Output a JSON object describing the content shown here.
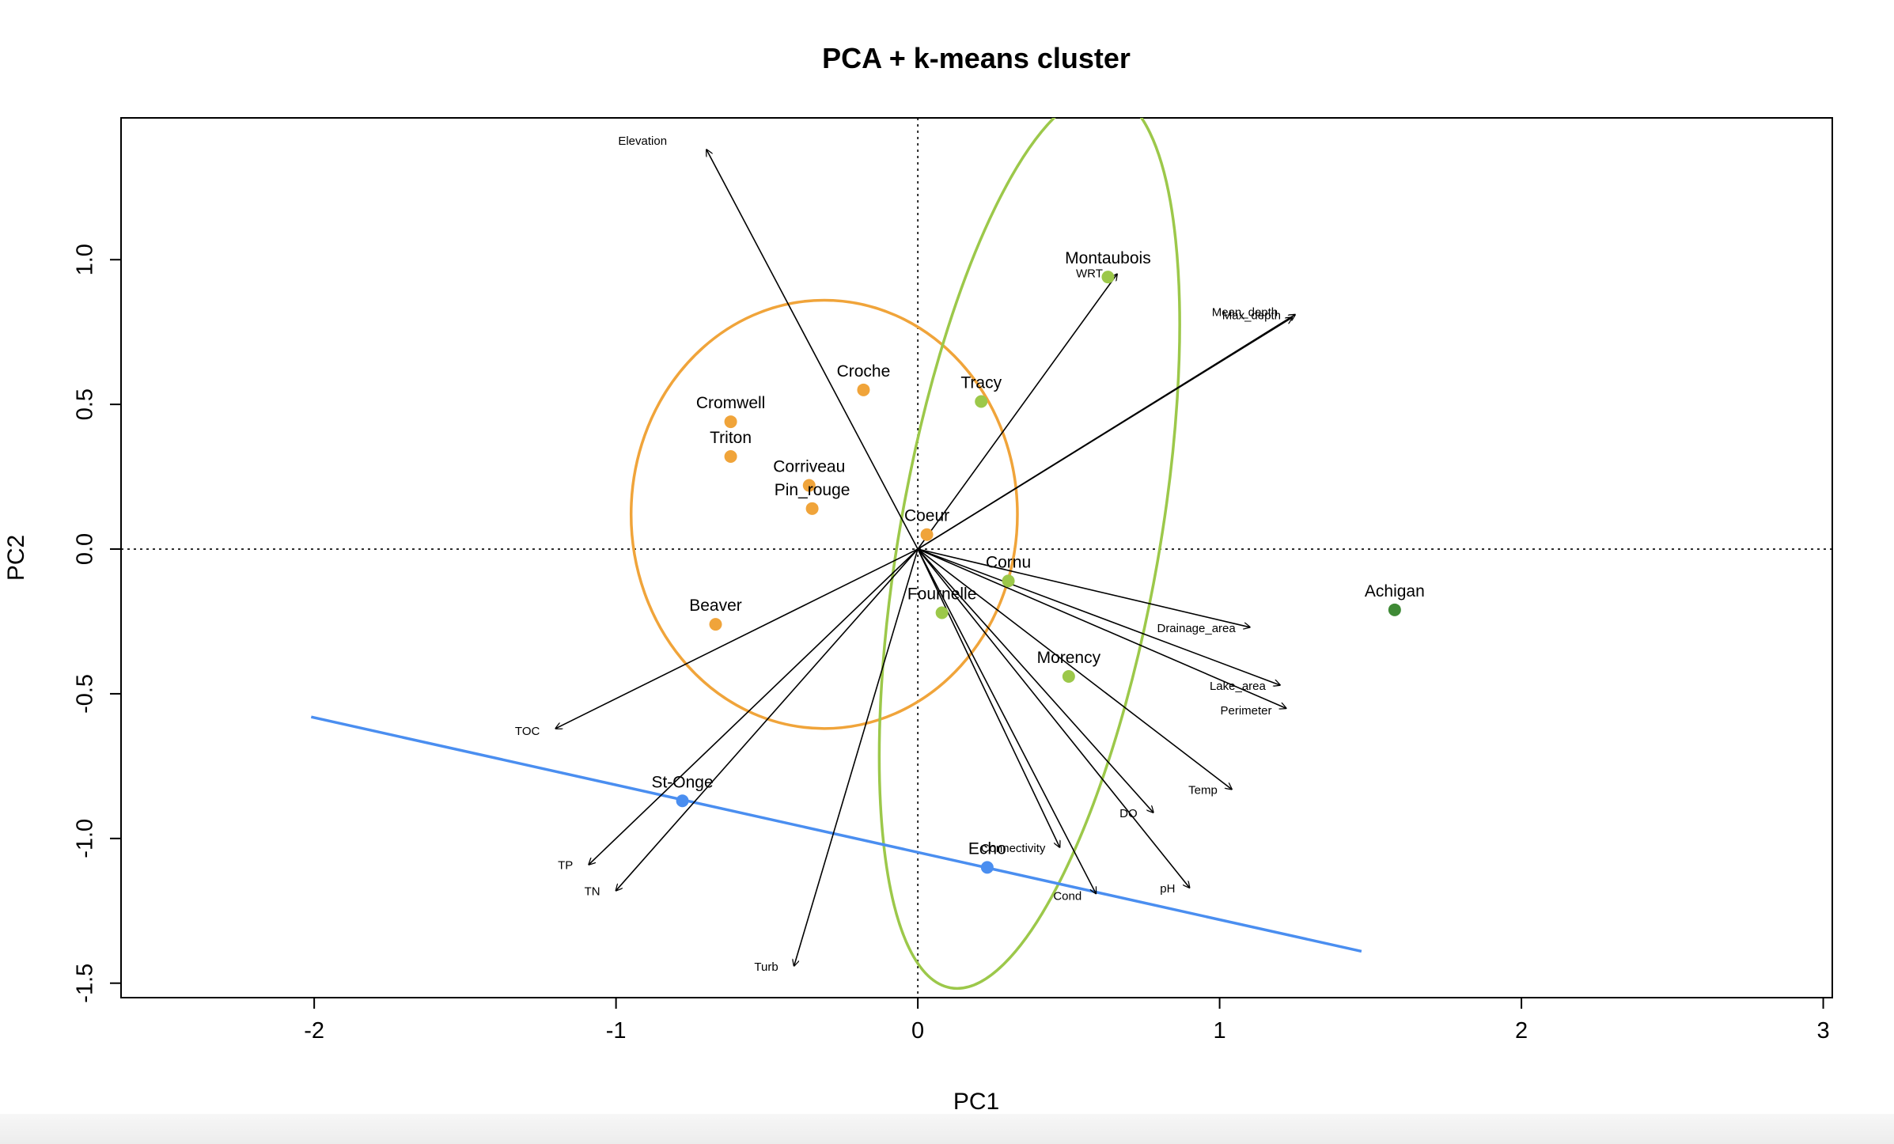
{
  "chart_data": {
    "type": "scatter",
    "title": "PCA + k-means cluster",
    "xlabel": "PC1",
    "ylabel": "PC2",
    "xlim": [
      -2.64,
      3.03
    ],
    "ylim": [
      -1.55,
      1.49
    ],
    "xticks": [
      "-2",
      "-1",
      "0",
      "1",
      "2",
      "3"
    ],
    "yticks": [
      "-1.5",
      "-1.0",
      "-0.5",
      "0.0",
      "0.5",
      "1.0"
    ],
    "colors": {
      "orange": "#f0a43a",
      "light_green": "#9cc84a",
      "dark_green": "#3f8a36",
      "blue": "#4a8ef0",
      "arrow": "#000000"
    },
    "sites": [
      {
        "name": "Montaubois",
        "x": 0.63,
        "y": 0.94,
        "color": "light_green"
      },
      {
        "name": "Croche",
        "x": -0.18,
        "y": 0.55,
        "color": "orange"
      },
      {
        "name": "Tracy",
        "x": 0.21,
        "y": 0.51,
        "color": "light_green"
      },
      {
        "name": "Cromwell",
        "x": -0.62,
        "y": 0.44,
        "color": "orange"
      },
      {
        "name": "Triton",
        "x": -0.62,
        "y": 0.32,
        "color": "orange"
      },
      {
        "name": "Corriveau",
        "x": -0.36,
        "y": 0.22,
        "color": "orange"
      },
      {
        "name": "Pin_rouge",
        "x": -0.35,
        "y": 0.14,
        "color": "orange"
      },
      {
        "name": "Coeur",
        "x": 0.03,
        "y": 0.05,
        "color": "orange"
      },
      {
        "name": "Cornu",
        "x": 0.3,
        "y": -0.11,
        "color": "light_green"
      },
      {
        "name": "Fournelle",
        "x": 0.08,
        "y": -0.22,
        "color": "light_green"
      },
      {
        "name": "Beaver",
        "x": -0.67,
        "y": -0.26,
        "color": "orange"
      },
      {
        "name": "Morency",
        "x": 0.5,
        "y": -0.44,
        "color": "light_green"
      },
      {
        "name": "Achigan",
        "x": 1.58,
        "y": -0.21,
        "color": "dark_green"
      },
      {
        "name": "St-Onge",
        "x": -0.78,
        "y": -0.87,
        "color": "blue"
      },
      {
        "name": "Echo",
        "x": 0.23,
        "y": -1.1,
        "color": "blue"
      }
    ],
    "variables": [
      {
        "name": "Elevation",
        "x": -0.7,
        "y": 1.38
      },
      {
        "name": "WRT",
        "x": 0.66,
        "y": 0.95
      },
      {
        "name": "Mean_depth",
        "x": 1.24,
        "y": 0.8
      },
      {
        "name": "Max_depth",
        "x": 1.25,
        "y": 0.81
      },
      {
        "name": "Drainage_area",
        "x": 1.1,
        "y": -0.27
      },
      {
        "name": "Lake_area",
        "x": 1.2,
        "y": -0.47
      },
      {
        "name": "Perimeter",
        "x": 1.22,
        "y": -0.55
      },
      {
        "name": "Temp",
        "x": 1.04,
        "y": -0.83
      },
      {
        "name": "DO",
        "x": 0.78,
        "y": -0.91
      },
      {
        "name": "Connectivity",
        "x": 0.47,
        "y": -1.03
      },
      {
        "name": "Cond",
        "x": 0.59,
        "y": -1.19
      },
      {
        "name": "pH",
        "x": 0.9,
        "y": -1.17
      },
      {
        "name": "TOC",
        "x": -1.2,
        "y": -0.62
      },
      {
        "name": "TP",
        "x": -1.09,
        "y": -1.09
      },
      {
        "name": "TN",
        "x": -1.0,
        "y": -1.18
      },
      {
        "name": "Turb",
        "x": -0.41,
        "y": -1.44
      }
    ],
    "clusters": [
      {
        "shape": "ellipse",
        "color": "orange",
        "cx": -0.31,
        "cy": 0.12,
        "rx": 0.64,
        "ry": 0.74,
        "rotation_deg": 0
      },
      {
        "shape": "ellipse",
        "color": "light_green",
        "cx": 0.37,
        "cy": 0.03,
        "rx": 0.43,
        "ry": 1.57,
        "rotation_deg": 10
      },
      {
        "shape": "line",
        "color": "blue",
        "x1": -2.01,
        "y1": -0.58,
        "x2": 1.47,
        "y2": -1.39
      }
    ]
  }
}
